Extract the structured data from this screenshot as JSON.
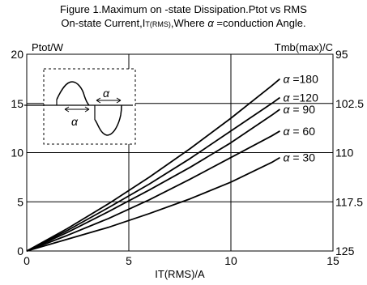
{
  "chart_data": {
    "type": "line",
    "title_line1": "Figure 1.Maximum on -state  Dissipation.Ptot vs RMS",
    "title_line2_prefix": "On-state Current,I",
    "title_line2_sub": "T(RMS)",
    "title_line2_mid": ",Where ",
    "title_line2_alpha": "α",
    "title_line2_suffix": " =conduction Angle.",
    "ylabel": "Ptot/W",
    "y2label": "Tmb(max)/C",
    "xlabel": "IT(RMS)/A",
    "xlim": [
      0,
      15
    ],
    "ylim": [
      0,
      20
    ],
    "x_ticks": [
      "0",
      "5",
      "10",
      "15"
    ],
    "y_ticks": [
      "0",
      "5",
      "10",
      "15",
      "20"
    ],
    "y2_ticks": [
      "125",
      "117.5",
      "110",
      "102.5",
      "95"
    ],
    "grid": true,
    "legend_placement": "inline-right",
    "inset_label": "α",
    "series": [
      {
        "name": "α =180",
        "x": [
          0,
          2,
          4,
          6,
          8,
          10,
          12,
          12.4
        ],
        "y": [
          0,
          2.3,
          4.8,
          7.5,
          10.4,
          13.5,
          16.8,
          17.5
        ]
      },
      {
        "name": "α =120",
        "x": [
          0,
          2,
          4,
          6,
          8,
          10,
          12,
          12.4
        ],
        "y": [
          0,
          2.1,
          4.4,
          6.8,
          9.4,
          12.2,
          15.0,
          15.6
        ]
      },
      {
        "name": "α = 90",
        "x": [
          0,
          2,
          4,
          6,
          8,
          10,
          12,
          12.4
        ],
        "y": [
          0,
          1.9,
          4.0,
          6.2,
          8.5,
          11.0,
          13.8,
          14.4
        ]
      },
      {
        "name": "α = 60",
        "x": [
          0,
          2,
          4,
          6,
          8,
          10,
          12,
          12.4
        ],
        "y": [
          0,
          1.6,
          3.3,
          5.2,
          7.3,
          9.5,
          11.7,
          12.2
        ]
      },
      {
        "name": "α = 30",
        "x": [
          0,
          2,
          4,
          6,
          8,
          10,
          12,
          12.4
        ],
        "y": [
          0,
          1.2,
          2.4,
          3.8,
          5.3,
          7.0,
          9.0,
          9.5
        ]
      }
    ]
  }
}
